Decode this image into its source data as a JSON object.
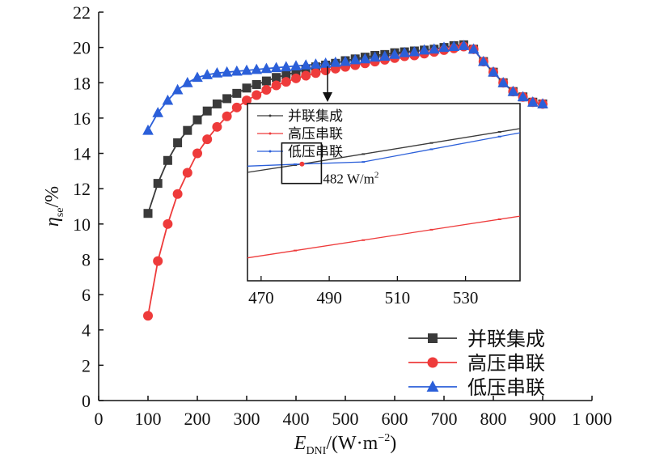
{
  "chart_data": {
    "type": "line",
    "xlabel_main": "E",
    "xlabel_sub": "DNI",
    "xlabel_unit": "/(W·m",
    "xlabel_exp": "−2",
    "xlabel_close": ")",
    "ylabel_main": "η",
    "ylabel_sub": "se",
    "ylabel_unit": "/%",
    "xlim": [
      0,
      1000
    ],
    "ylim": [
      0,
      22
    ],
    "x_ticks": [
      0,
      100,
      200,
      300,
      400,
      500,
      600,
      700,
      800,
      900,
      1000
    ],
    "x_tick_labels": [
      "0",
      "100",
      "200",
      "300",
      "400",
      "500",
      "600",
      "700",
      "800",
      "900",
      "1 000"
    ],
    "y_ticks": [
      0,
      2,
      4,
      6,
      8,
      10,
      12,
      14,
      16,
      18,
      20,
      22
    ],
    "y_tick_labels": [
      "0",
      "2",
      "4",
      "6",
      "8",
      "10",
      "12",
      "14",
      "16",
      "18",
      "20",
      "22"
    ],
    "legend_position": "bottom-right",
    "series": [
      {
        "name": "并联集成",
        "color": "#3a3a3a",
        "marker": "square",
        "x": [
          100,
          120,
          140,
          160,
          180,
          200,
          220,
          240,
          260,
          280,
          300,
          320,
          340,
          360,
          380,
          400,
          420,
          440,
          460,
          480,
          500,
          520,
          540,
          560,
          580,
          600,
          620,
          640,
          660,
          680,
          700,
          720,
          740,
          760,
          780,
          800,
          820,
          840,
          860,
          880,
          900
        ],
        "y": [
          10.6,
          12.3,
          13.6,
          14.6,
          15.3,
          15.9,
          16.4,
          16.8,
          17.1,
          17.4,
          17.7,
          17.9,
          18.1,
          18.3,
          18.45,
          18.6,
          18.75,
          18.9,
          19.0,
          19.1,
          19.25,
          19.35,
          19.45,
          19.55,
          19.6,
          19.7,
          19.75,
          19.8,
          19.85,
          19.9,
          20.0,
          20.1,
          20.15,
          19.9,
          19.2,
          18.6,
          18.0,
          17.5,
          17.2,
          16.9,
          16.8
        ]
      },
      {
        "name": "高压串联",
        "color": "#ee3b3b",
        "marker": "circle",
        "x": [
          100,
          120,
          140,
          160,
          180,
          200,
          220,
          240,
          260,
          280,
          300,
          320,
          340,
          360,
          380,
          400,
          420,
          440,
          460,
          480,
          500,
          520,
          540,
          560,
          580,
          600,
          620,
          640,
          660,
          680,
          700,
          720,
          740,
          760,
          780,
          800,
          820,
          840,
          860,
          880,
          900
        ],
        "y": [
          4.8,
          7.9,
          10.0,
          11.7,
          12.9,
          14.0,
          14.8,
          15.5,
          16.1,
          16.6,
          17.0,
          17.3,
          17.6,
          17.85,
          18.05,
          18.25,
          18.4,
          18.55,
          18.7,
          18.8,
          18.9,
          19.0,
          19.1,
          19.2,
          19.3,
          19.4,
          19.5,
          19.55,
          19.65,
          19.75,
          19.85,
          19.95,
          20.05,
          19.9,
          19.2,
          18.6,
          18.0,
          17.5,
          17.2,
          16.9,
          16.8
        ]
      },
      {
        "name": "低压串联",
        "color": "#2b5fd9",
        "marker": "triangle",
        "x": [
          100,
          120,
          140,
          160,
          180,
          200,
          220,
          240,
          260,
          280,
          300,
          320,
          340,
          360,
          380,
          400,
          420,
          440,
          460,
          480,
          500,
          520,
          540,
          560,
          580,
          600,
          620,
          640,
          660,
          680,
          700,
          720,
          740,
          760,
          780,
          800,
          820,
          840,
          860,
          880,
          900
        ],
        "y": [
          15.3,
          16.3,
          17.0,
          17.6,
          18.0,
          18.3,
          18.45,
          18.55,
          18.6,
          18.65,
          18.7,
          18.75,
          18.8,
          18.85,
          18.9,
          18.95,
          19.0,
          19.05,
          19.1,
          19.15,
          19.2,
          19.3,
          19.35,
          19.45,
          19.5,
          19.6,
          19.7,
          19.75,
          19.85,
          19.9,
          20.0,
          20.05,
          20.1,
          19.9,
          19.2,
          18.6,
          18.0,
          17.5,
          17.2,
          16.9,
          16.8
        ]
      }
    ],
    "inset": {
      "xlim": [
        466,
        546
      ],
      "ylim": [
        18.55,
        19.4
      ],
      "x_ticks": [
        470,
        490,
        510,
        530
      ],
      "x_tick_labels": [
        "470",
        "490",
        "510",
        "530"
      ],
      "legend_position": "top-left",
      "series": [
        {
          "name": "并联集成",
          "color": "#3a3a3a",
          "x": [
            466,
            482,
            546
          ],
          "y": [
            19.07,
            19.11,
            19.28
          ]
        },
        {
          "name": "高压串联",
          "color": "#ee3b3b",
          "x": [
            466,
            546
          ],
          "y": [
            18.66,
            18.86
          ]
        },
        {
          "name": "低压串联",
          "color": "#2b5fd9",
          "x": [
            466,
            482,
            500,
            546
          ],
          "y": [
            19.1,
            19.11,
            19.12,
            19.26
          ]
        }
      ],
      "annotation": {
        "label": "482 W/m",
        "label_exp": "2",
        "x": 482,
        "y": 19.11
      }
    }
  }
}
